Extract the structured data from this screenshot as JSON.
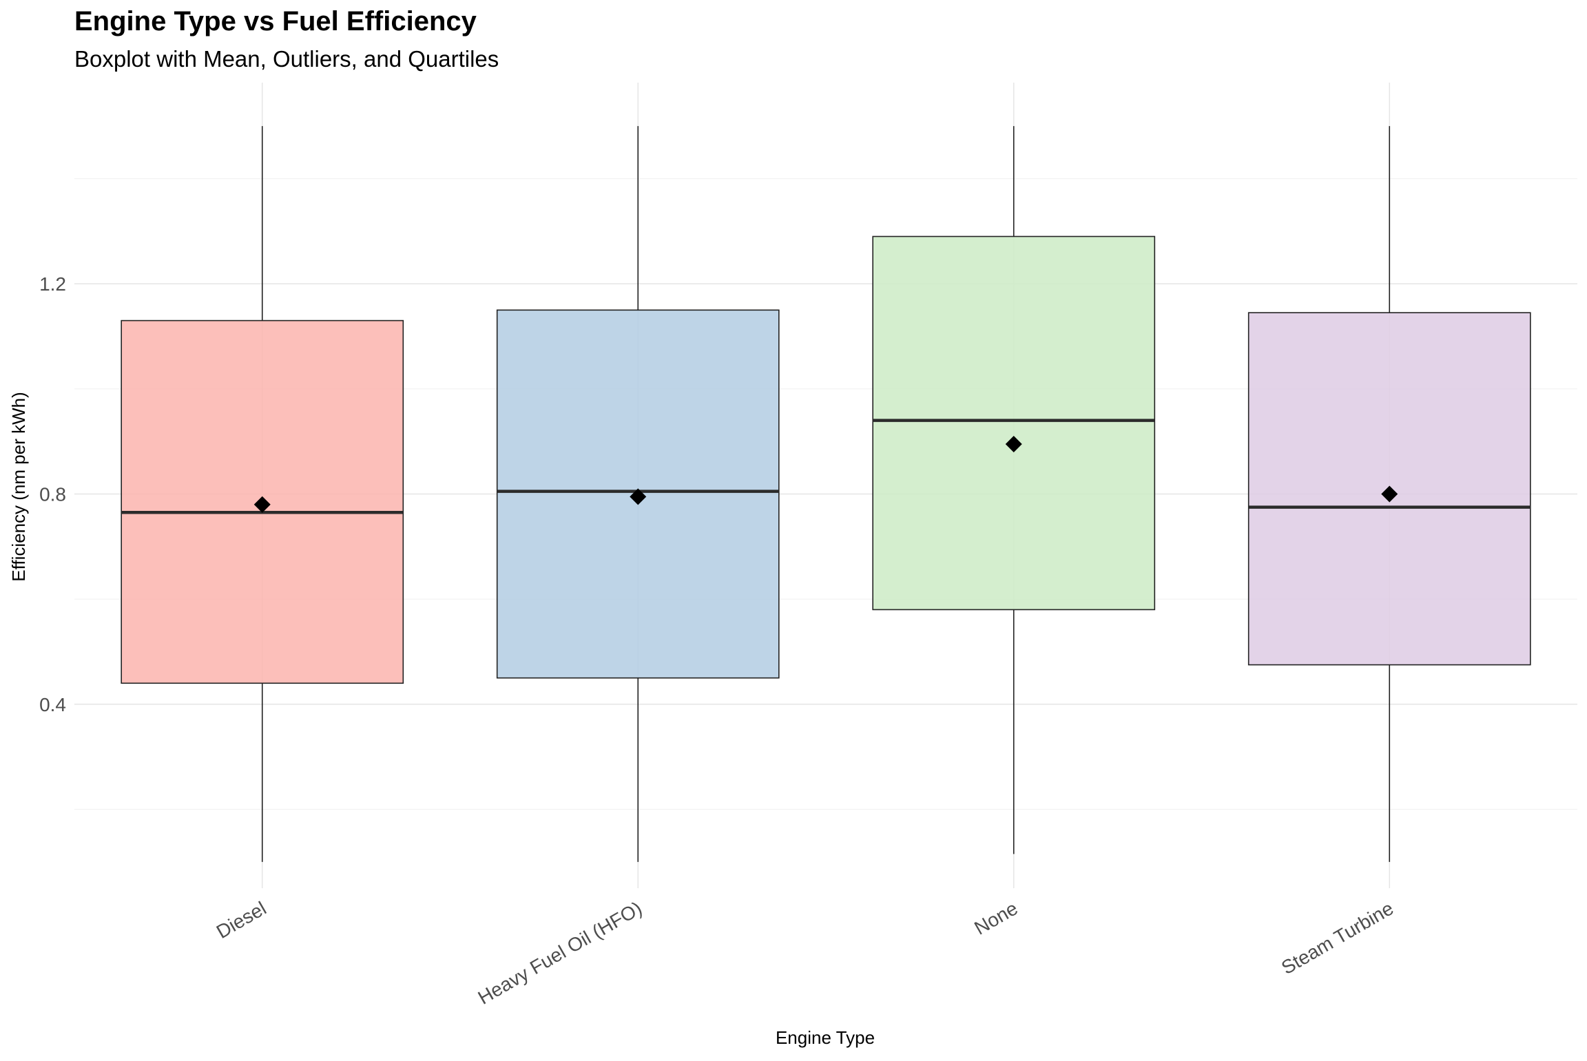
{
  "chart_data": {
    "type": "box",
    "title": "Engine Type vs Fuel Efficiency",
    "subtitle": "Boxplot with Mean, Outliers, and Quartiles",
    "xlabel": "Engine Type",
    "ylabel": "Efficiency (nm per kWh)",
    "ylim": [
      0.05,
      1.55
    ],
    "yticks": [
      0.4,
      0.8,
      1.2
    ],
    "ytick_labels": [
      "0.4",
      "0.8",
      "1.2"
    ],
    "grid": true,
    "legend": "none",
    "categories": [
      "Diesel",
      "Heavy Fuel Oil (HFO)",
      "None",
      "Steam Turbine"
    ],
    "boxes": [
      {
        "category": "Diesel",
        "min": 0.1,
        "q1": 0.44,
        "median": 0.765,
        "q3": 1.13,
        "max": 1.5,
        "mean": 0.78,
        "color": "#FBB4AE"
      },
      {
        "category": "Heavy Fuel Oil (HFO)",
        "min": 0.1,
        "q1": 0.45,
        "median": 0.805,
        "q3": 1.15,
        "max": 1.5,
        "mean": 0.795,
        "color": "#B3CDE3"
      },
      {
        "category": "None",
        "min": 0.115,
        "q1": 0.58,
        "median": 0.94,
        "q3": 1.29,
        "max": 1.5,
        "mean": 0.895,
        "color": "#CCEBC5"
      },
      {
        "category": "Steam Turbine",
        "min": 0.1,
        "q1": 0.475,
        "median": 0.775,
        "q3": 1.145,
        "max": 1.5,
        "mean": 0.8,
        "color": "#DECBE4"
      }
    ]
  }
}
